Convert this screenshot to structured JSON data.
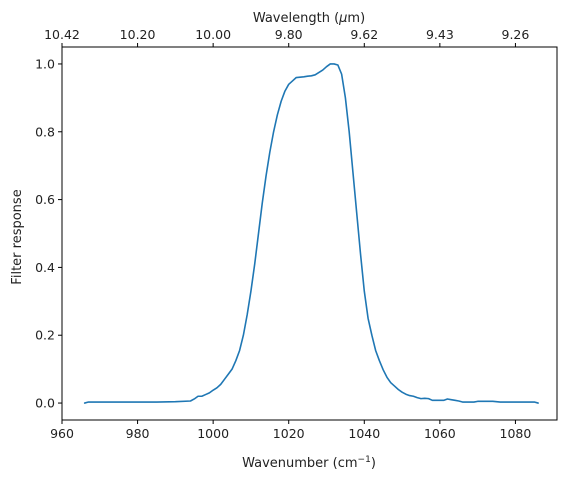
{
  "chart_data": {
    "type": "line",
    "xlabel": "Wavenumber (cm",
    "xlabel_superscript": "−1",
    "xlabel_suffix": ")",
    "ylabel": "Filter response",
    "top_xlabel_prefix": "Wavelength (",
    "top_xlabel_symbol": "μ",
    "top_xlabel_suffix": "m)",
    "xlim": [
      960,
      1091
    ],
    "ylim": [
      -0.05,
      1.05
    ],
    "xticks": [
      960,
      980,
      1000,
      1020,
      1040,
      1060,
      1080
    ],
    "xtick_labels": [
      "960",
      "980",
      "1000",
      "1020",
      "1040",
      "1060",
      "1080"
    ],
    "yticks": [
      0.0,
      0.2,
      0.4,
      0.6,
      0.8,
      1.0
    ],
    "ytick_labels": [
      "0.0",
      "0.2",
      "0.4",
      "0.6",
      "0.8",
      "1.0"
    ],
    "top_ticks": [
      {
        "pos": 960,
        "label": "10.42"
      },
      {
        "pos": 980,
        "label": "10.20"
      },
      {
        "pos": 1000,
        "label": "10.00"
      },
      {
        "pos": 1020,
        "label": "9.80"
      },
      {
        "pos": 1040,
        "label": "9.62"
      },
      {
        "pos": 1060,
        "label": "9.43"
      },
      {
        "pos": 1080,
        "label": "9.26"
      }
    ],
    "series": [
      {
        "color": "#1f77b4",
        "x": [
          966,
          967,
          970,
          975,
          980,
          985,
          990,
          994,
          995,
          996,
          997,
          998,
          999,
          1000,
          1001,
          1002,
          1003,
          1004,
          1005,
          1006,
          1007,
          1008,
          1009,
          1010,
          1011,
          1012,
          1013,
          1014,
          1015,
          1016,
          1017,
          1018,
          1019,
          1020,
          1021,
          1022,
          1023,
          1024,
          1025,
          1026,
          1027,
          1028,
          1029,
          1030,
          1031,
          1032,
          1033,
          1034,
          1035,
          1036,
          1037,
          1038,
          1039,
          1040,
          1041,
          1042,
          1043,
          1044,
          1045,
          1046,
          1047,
          1048,
          1049,
          1050,
          1051,
          1052,
          1053,
          1054,
          1055,
          1056,
          1057,
          1058,
          1059,
          1060,
          1061,
          1062,
          1063,
          1064,
          1065,
          1066,
          1067,
          1068,
          1069,
          1070,
          1072,
          1074,
          1076,
          1078,
          1080,
          1082,
          1084,
          1085,
          1086
        ],
        "y": [
          0.0,
          0.003,
          0.003,
          0.003,
          0.003,
          0.003,
          0.004,
          0.006,
          0.012,
          0.02,
          0.02,
          0.025,
          0.03,
          0.038,
          0.045,
          0.055,
          0.07,
          0.085,
          0.1,
          0.125,
          0.155,
          0.2,
          0.26,
          0.33,
          0.41,
          0.5,
          0.59,
          0.67,
          0.74,
          0.8,
          0.85,
          0.89,
          0.92,
          0.94,
          0.95,
          0.96,
          0.961,
          0.962,
          0.964,
          0.965,
          0.968,
          0.975,
          0.982,
          0.992,
          1.0,
          1.0,
          0.997,
          0.97,
          0.9,
          0.8,
          0.68,
          0.56,
          0.44,
          0.33,
          0.25,
          0.2,
          0.155,
          0.125,
          0.098,
          0.076,
          0.06,
          0.05,
          0.04,
          0.032,
          0.026,
          0.022,
          0.02,
          0.016,
          0.013,
          0.014,
          0.013,
          0.008,
          0.008,
          0.008,
          0.008,
          0.012,
          0.01,
          0.008,
          0.006,
          0.003,
          0.003,
          0.003,
          0.003,
          0.005,
          0.005,
          0.005,
          0.003,
          0.003,
          0.003,
          0.003,
          0.003,
          0.003,
          0.0
        ]
      }
    ]
  }
}
